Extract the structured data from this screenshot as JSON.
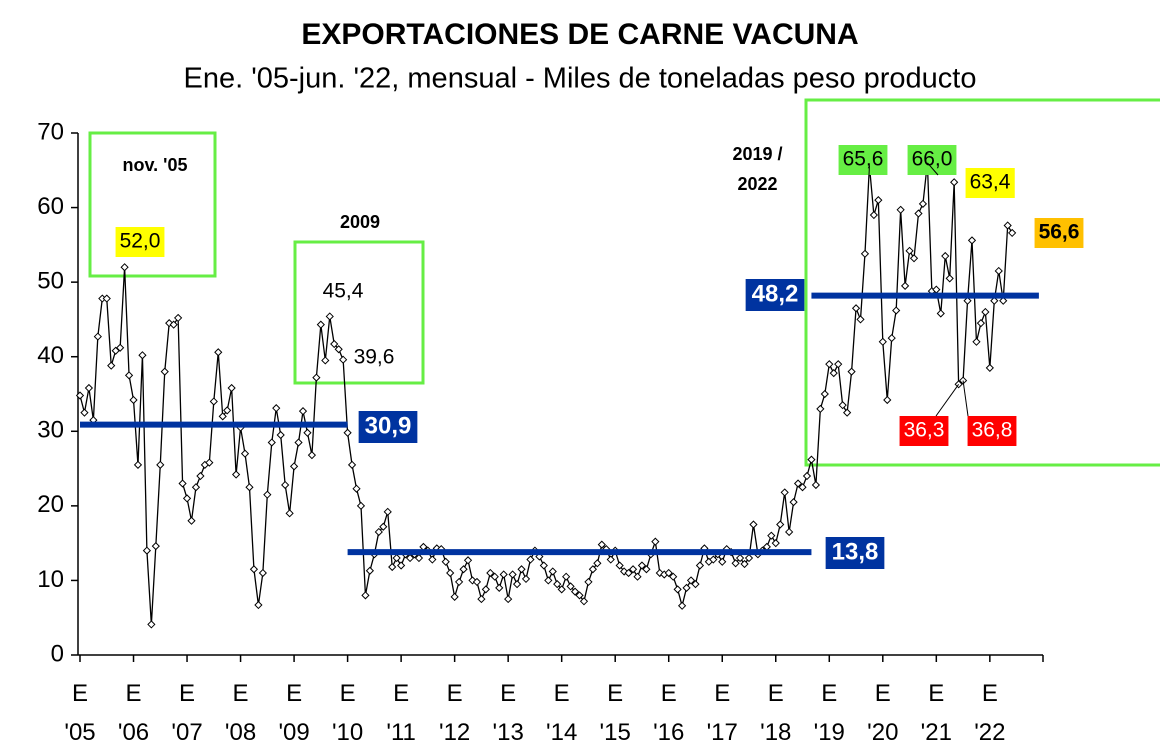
{
  "chart_data": {
    "type": "line",
    "title": "EXPORTACIONES DE CARNE VACUNA",
    "subtitle": "Ene. '05-jun. '22, mensual - Miles de toneladas peso producto",
    "categories": [
      "E '05",
      null,
      null,
      null,
      null,
      null,
      null,
      null,
      null,
      null,
      null,
      null,
      "E '06",
      null,
      null,
      null,
      null,
      null,
      null,
      null,
      null,
      null,
      null,
      null,
      "E '07",
      null,
      null,
      null,
      null,
      null,
      null,
      null,
      null,
      null,
      null,
      null,
      "E '08",
      null,
      null,
      null,
      null,
      null,
      null,
      null,
      null,
      null,
      null,
      null,
      "E '09",
      null,
      null,
      null,
      null,
      null,
      null,
      null,
      null,
      null,
      null,
      null,
      "E '10",
      null,
      null,
      null,
      null,
      null,
      null,
      null,
      null,
      null,
      null,
      null,
      "E '11",
      null,
      null,
      null,
      null,
      null,
      null,
      null,
      null,
      null,
      null,
      null,
      "E '12",
      null,
      null,
      null,
      null,
      null,
      null,
      null,
      null,
      null,
      null,
      null,
      "E '13",
      null,
      null,
      null,
      null,
      null,
      null,
      null,
      null,
      null,
      null,
      null,
      "E '14",
      null,
      null,
      null,
      null,
      null,
      null,
      null,
      null,
      null,
      null,
      null,
      "E '15",
      null,
      null,
      null,
      null,
      null,
      null,
      null,
      null,
      null,
      null,
      null,
      "E '16",
      null,
      null,
      null,
      null,
      null,
      null,
      null,
      null,
      null,
      null,
      null,
      "E '17",
      null,
      null,
      null,
      null,
      null,
      null,
      null,
      null,
      null,
      null,
      null,
      "E '18",
      null,
      null,
      null,
      null,
      null,
      null,
      null,
      null,
      null,
      null,
      null,
      "E '19",
      null,
      null,
      null,
      null,
      null,
      null,
      null,
      null,
      null,
      null,
      null,
      "E '20",
      null,
      null,
      null,
      null,
      null,
      null,
      null,
      null,
      null,
      null,
      null,
      "E '21",
      null,
      null,
      null,
      null,
      null,
      null,
      null,
      null,
      null,
      null,
      null,
      "E '22",
      null,
      null,
      null,
      null,
      null
    ],
    "values": [
      34.8,
      32.5,
      35.8,
      31.5,
      42.7,
      47.8,
      47.8,
      38.8,
      40.8,
      41.2,
      52.0,
      37.5,
      34.2,
      25.5,
      40.2,
      14.0,
      4.1,
      14.6,
      25.5,
      38.0,
      44.5,
      44.3,
      45.2,
      23.0,
      21.0,
      18.0,
      22.5,
      24.0,
      25.5,
      25.8,
      34.0,
      40.6,
      32.0,
      32.8,
      35.8,
      24.2,
      30.5,
      27.0,
      22.5,
      11.5,
      6.7,
      11.0,
      21.5,
      28.5,
      33.1,
      29.5,
      22.8,
      19.0,
      25.3,
      28.5,
      32.7,
      29.8,
      26.8,
      37.2,
      44.3,
      39.5,
      45.4,
      41.7,
      41.0,
      39.6,
      29.8,
      25.5,
      22.3,
      20.0,
      8.0,
      11.3,
      13.5,
      16.5,
      17.2,
      19.2,
      11.8,
      13.0,
      12.0,
      13.5,
      13.0,
      13.5,
      13.0,
      14.5,
      14.0,
      12.8,
      14.3,
      14.2,
      12.5,
      11.0,
      7.8,
      9.8,
      11.5,
      12.7,
      10.0,
      9.8,
      7.5,
      8.8,
      11.0,
      10.5,
      9.0,
      10.8,
      7.5,
      10.8,
      9.5,
      11.5,
      10.2,
      12.8,
      14.0,
      13.2,
      12.0,
      10.0,
      11.2,
      9.5,
      8.8,
      10.5,
      9.2,
      8.5,
      8.0,
      7.2,
      9.8,
      11.5,
      12.3,
      14.8,
      14.2,
      12.8,
      14.0,
      12.0,
      11.2,
      11.0,
      11.5,
      10.5,
      12.0,
      11.5,
      13.5,
      15.2,
      11.0,
      10.8,
      11.0,
      10.5,
      8.8,
      6.6,
      9.0,
      10.0,
      9.5,
      12.0,
      14.3,
      12.5,
      12.8,
      13.5,
      12.5,
      14.2,
      13.8,
      12.3,
      13.0,
      12.2,
      13.0,
      17.5,
      13.5,
      14.0,
      14.5,
      16.0,
      15.0,
      17.5,
      21.8,
      16.5,
      20.5,
      23.0,
      22.5,
      24.0,
      26.2,
      22.8,
      33.0,
      35.0,
      39.0,
      37.8,
      39.0,
      33.5,
      32.5,
      38.0,
      46.5,
      45.0,
      53.8,
      65.6,
      59.0,
      61.0,
      42.0,
      34.2,
      42.5,
      46.2,
      59.7,
      49.5,
      54.2,
      53.2,
      59.2,
      60.5,
      66.0,
      48.8,
      49.0,
      45.8,
      53.5,
      50.5,
      63.4,
      36.3,
      36.8,
      47.5,
      55.6,
      42.0,
      44.5,
      46.0,
      38.5,
      47.5,
      51.5,
      47.5,
      57.6,
      56.6
    ],
    "value_labels": [
      null,
      null,
      null,
      null,
      null,
      null,
      null,
      null,
      null,
      null,
      "52,0",
      null,
      null,
      null,
      null,
      null,
      null,
      null,
      null,
      null,
      null,
      null,
      null,
      null,
      null,
      null,
      null,
      null,
      null,
      null,
      null,
      null,
      null,
      null,
      null,
      null,
      null,
      null,
      null,
      null,
      null,
      null,
      null,
      null,
      null,
      null,
      null,
      null,
      null,
      null,
      null,
      null,
      null,
      null,
      null,
      null,
      "45,4",
      null,
      null,
      "39,6",
      null,
      null,
      null,
      null,
      null,
      null,
      null,
      null,
      null,
      null,
      null,
      null,
      null,
      null,
      null,
      null,
      null,
      null,
      null,
      null,
      null,
      null,
      null,
      null,
      null,
      null,
      null,
      null,
      null,
      null,
      null,
      null,
      null,
      null,
      null,
      null,
      null,
      null,
      null,
      null,
      null,
      null,
      null,
      null,
      null,
      null,
      null,
      null,
      null,
      null,
      null,
      null,
      null,
      null,
      null,
      null,
      null,
      null,
      null,
      null,
      null,
      null,
      null,
      null,
      null,
      null,
      null,
      null,
      null,
      null,
      null,
      null,
      null,
      null,
      null,
      null,
      null,
      null,
      null,
      null,
      null,
      null,
      null,
      null,
      null,
      null,
      null,
      null,
      null,
      null,
      null,
      null,
      null,
      null,
      null,
      null,
      null,
      null,
      null,
      null,
      null,
      null,
      null,
      null,
      null,
      null,
      null,
      null,
      null,
      null,
      null,
      null,
      null,
      null,
      null,
      null,
      null,
      "65,6",
      null,
      null,
      null,
      null,
      null,
      null,
      null,
      null,
      null,
      null,
      null,
      null,
      "66,0",
      null,
      null,
      null,
      null,
      null,
      "63,4",
      "36,3",
      "36,8",
      null,
      null,
      null,
      null,
      null,
      null,
      null,
      null,
      null,
      null,
      "56,6"
    ],
    "color": "#000000",
    "reference_lines": [
      {
        "value": 30.9,
        "label": "30,9"
      },
      {
        "value": 13.8,
        "label": "13,8"
      },
      {
        "value": 48.2,
        "label": "48,2"
      }
    ],
    "reference_color": "#0033a0",
    "annotations": [
      "nov. '05",
      "2009",
      "2019 / 2022"
    ],
    "ylim": [
      0,
      70
    ],
    "yticks": [
      0,
      10,
      20,
      30,
      40,
      50,
      60,
      70
    ],
    "grid": false
  }
}
